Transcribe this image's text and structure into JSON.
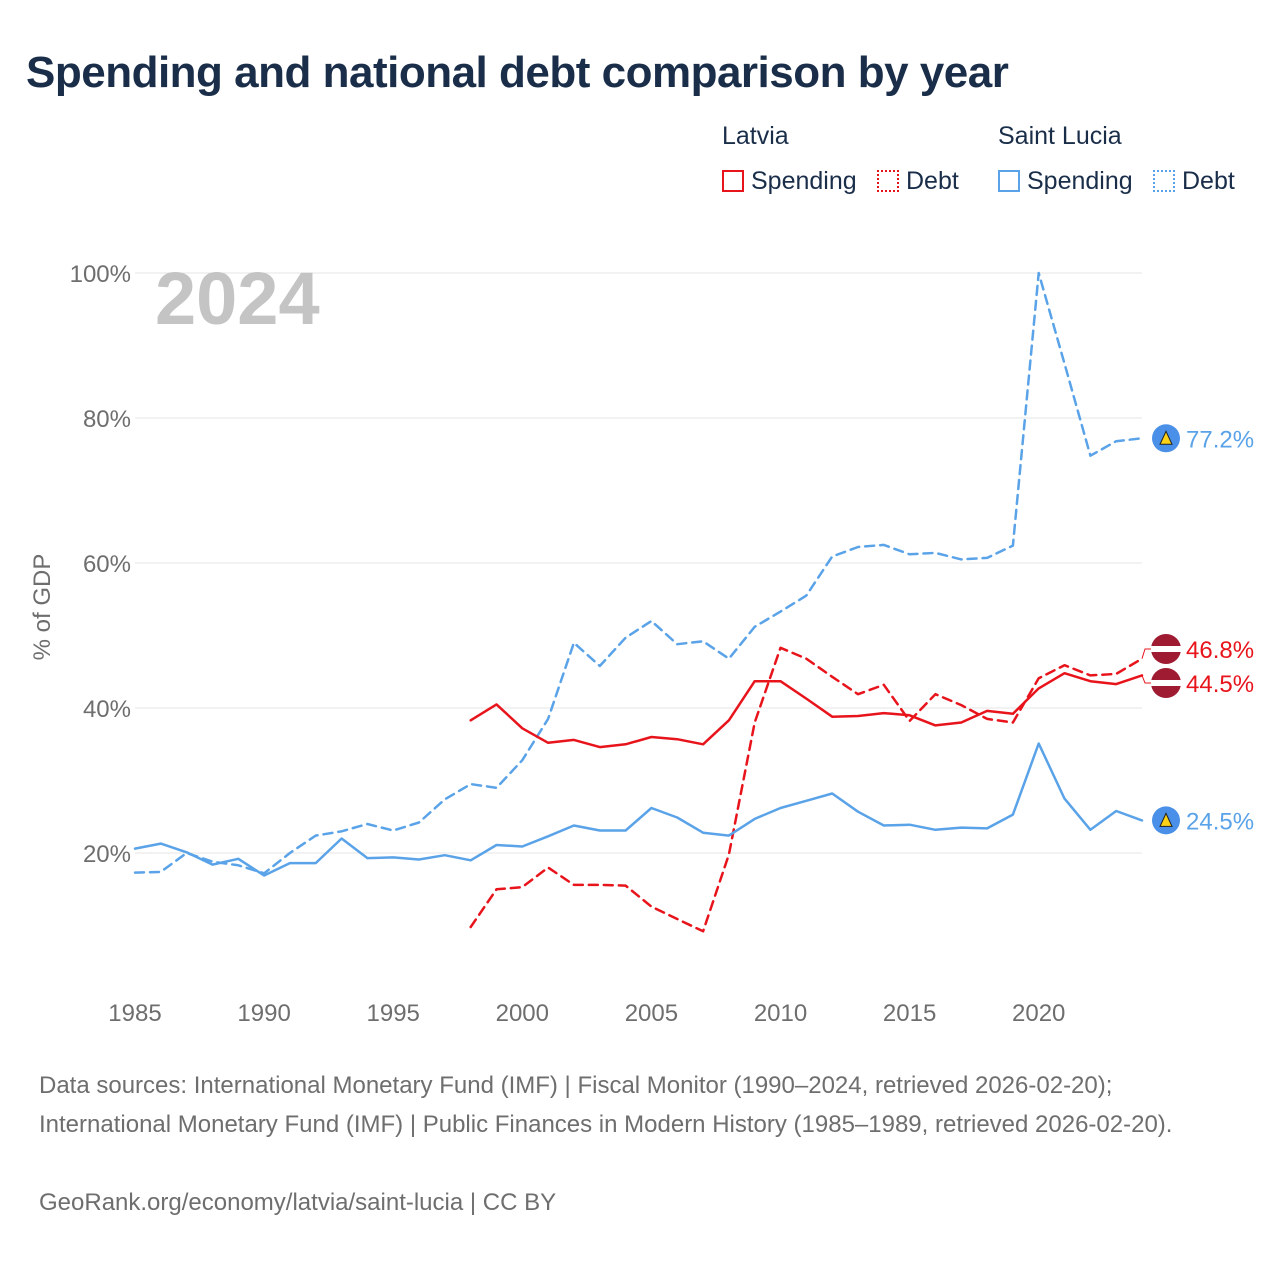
{
  "title": "Spending and national debt comparison by year",
  "legend": {
    "groups": [
      {
        "name": "Latvia",
        "spending_label": "Spending",
        "debt_label": "Debt"
      },
      {
        "name": "Saint Lucia",
        "spending_label": "Spending",
        "debt_label": "Debt"
      }
    ]
  },
  "colors": {
    "latvia": "#e8141c",
    "saint_lucia": "#5aa3e8",
    "grid": "#e4e4e4",
    "watermark": "#c4c4c4"
  },
  "chart_data": {
    "type": "line",
    "title": "Spending and national debt comparison by year",
    "xlabel": "",
    "ylabel": "% of GDP",
    "xlim": [
      1985,
      2024
    ],
    "ylim": [
      0,
      100
    ],
    "y_ticks": [
      20,
      40,
      60,
      80,
      100
    ],
    "y_tick_labels": [
      "20%",
      "40%",
      "60%",
      "80%",
      "100%"
    ],
    "x_ticks": [
      1985,
      1990,
      1995,
      2000,
      2005,
      2010,
      2015,
      2020
    ],
    "x_tick_labels": [
      "1985",
      "1990",
      "1995",
      "2000",
      "2005",
      "2010",
      "2015",
      "2020"
    ],
    "year_watermark": "2024",
    "series": [
      {
        "name": "Saint Lucia Debt",
        "country": "Saint Lucia",
        "kind": "Debt",
        "color": "#5aa3e8",
        "dashed": true,
        "x": [
          1985,
          1986,
          1987,
          1988,
          1989,
          1990,
          1991,
          1992,
          1993,
          1994,
          1995,
          1996,
          1997,
          1998,
          1999,
          2000,
          2001,
          2002,
          2003,
          2004,
          2005,
          2006,
          2007,
          2008,
          2009,
          2010,
          2011,
          2012,
          2013,
          2014,
          2015,
          2016,
          2017,
          2018,
          2019,
          2020,
          2021,
          2022,
          2023,
          2024
        ],
        "values": [
          17.3,
          17.4,
          20.0,
          18.8,
          18.3,
          17.2,
          20.0,
          22.4,
          23.0,
          24.0,
          23.1,
          24.2,
          27.4,
          29.5,
          29.0,
          32.8,
          38.5,
          49.0,
          45.8,
          49.7,
          52.0,
          48.8,
          49.2,
          46.8,
          51.2,
          53.3,
          55.5,
          60.9,
          62.2,
          62.5,
          61.2,
          61.4,
          60.5,
          60.7,
          62.4,
          100.0,
          87.5,
          74.8,
          76.8,
          77.2
        ],
        "end_label": "77.2%"
      },
      {
        "name": "Latvia Debt",
        "country": "Latvia",
        "kind": "Debt",
        "color": "#e8141c",
        "dashed": true,
        "x": [
          1998,
          1999,
          2000,
          2001,
          2002,
          2003,
          2004,
          2005,
          2006,
          2007,
          2008,
          2009,
          2010,
          2011,
          2012,
          2013,
          2014,
          2015,
          2016,
          2017,
          2018,
          2019,
          2020,
          2021,
          2022,
          2023,
          2024
        ],
        "values": [
          9.8,
          15.0,
          15.3,
          18.0,
          15.6,
          15.6,
          15.5,
          12.6,
          10.9,
          9.2,
          19.8,
          38.0,
          48.3,
          46.8,
          44.3,
          41.9,
          43.2,
          38.2,
          41.9,
          40.4,
          38.5,
          38.0,
          44.1,
          45.9,
          44.5,
          44.7,
          46.8
        ],
        "end_label": "46.8%"
      },
      {
        "name": "Latvia Spending",
        "country": "Latvia",
        "kind": "Spending",
        "color": "#e8141c",
        "dashed": false,
        "x": [
          1998,
          1999,
          2000,
          2001,
          2002,
          2003,
          2004,
          2005,
          2006,
          2007,
          2008,
          2009,
          2010,
          2011,
          2012,
          2013,
          2014,
          2015,
          2016,
          2017,
          2018,
          2019,
          2020,
          2021,
          2022,
          2023,
          2024
        ],
        "values": [
          38.3,
          40.5,
          37.2,
          35.2,
          35.6,
          34.6,
          35.0,
          36.0,
          35.7,
          35.0,
          38.3,
          43.7,
          43.7,
          41.3,
          38.8,
          38.9,
          39.3,
          39.0,
          37.6,
          38.0,
          39.6,
          39.2,
          42.7,
          44.8,
          43.7,
          43.3,
          44.5
        ],
        "end_label": "44.5%"
      },
      {
        "name": "Saint Lucia Spending",
        "country": "Saint Lucia",
        "kind": "Spending",
        "color": "#5aa3e8",
        "dashed": false,
        "x": [
          1985,
          1986,
          1987,
          1988,
          1989,
          1990,
          1991,
          1992,
          1993,
          1994,
          1995,
          1996,
          1997,
          1998,
          1999,
          2000,
          2001,
          2002,
          2003,
          2004,
          2005,
          2006,
          2007,
          2008,
          2009,
          2010,
          2011,
          2012,
          2013,
          2014,
          2015,
          2016,
          2017,
          2018,
          2019,
          2020,
          2021,
          2022,
          2023,
          2024
        ],
        "values": [
          20.6,
          21.3,
          20.1,
          18.4,
          19.2,
          16.9,
          18.6,
          18.6,
          22.0,
          19.3,
          19.4,
          19.1,
          19.7,
          19.0,
          21.1,
          20.9,
          22.3,
          23.8,
          23.1,
          23.1,
          26.2,
          24.9,
          22.8,
          22.4,
          24.7,
          26.2,
          27.2,
          28.2,
          25.7,
          23.8,
          23.9,
          23.2,
          23.5,
          23.4,
          25.3,
          35.1,
          27.5,
          23.2,
          25.8,
          24.5
        ],
        "end_label": "24.5%"
      }
    ]
  },
  "footer": {
    "sources": "Data sources: International Monetary Fund (IMF) | Fiscal Monitor (1990–2024, retrieved 2026-02-20); International Monetary Fund (IMF) | Public Finances in Modern History (1985–1989, retrieved 2026-02-20).",
    "credit": "GeoRank.org/economy/latvia/saint-lucia | CC BY"
  }
}
